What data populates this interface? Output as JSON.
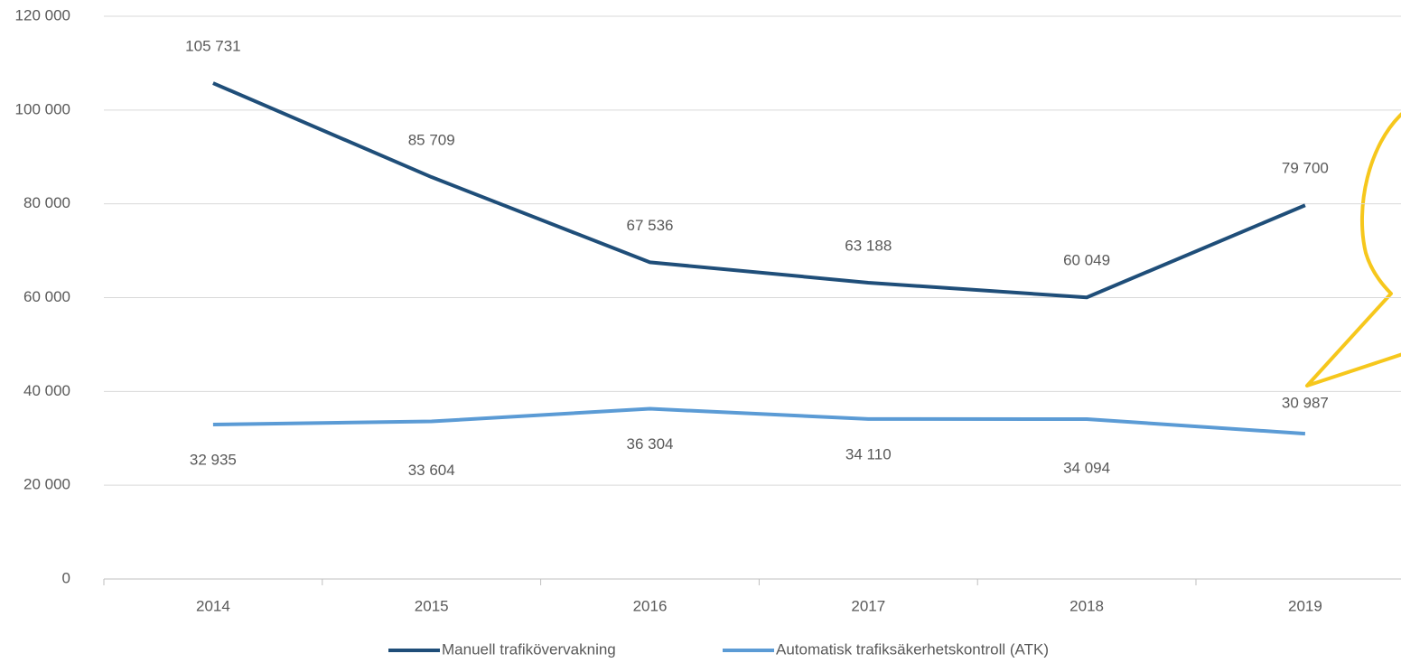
{
  "chart_data": {
    "type": "line",
    "categories": [
      "2014",
      "2015",
      "2016",
      "2017",
      "2018",
      "2019"
    ],
    "series": [
      {
        "name": "Manuell trafikövervakning",
        "color": "#1f4e79",
        "values": [
          105731,
          85709,
          67536,
          63188,
          60049,
          79700
        ],
        "value_labels": [
          "105 731",
          "85 709",
          "67 536",
          "63 188",
          "60 049",
          "79 700"
        ]
      },
      {
        "name": "Automatisk trafiksäkerhetskontroll (ATK)",
        "color": "#5b9bd5",
        "values": [
          32935,
          33604,
          36304,
          34110,
          34094,
          30987
        ],
        "value_labels": [
          "32 935",
          "33 604",
          "36 304",
          "34 110",
          "34 094",
          "30 987"
        ]
      }
    ],
    "ylim": [
      0,
      120000
    ],
    "yticks": [
      {
        "value": 0,
        "label": "0"
      },
      {
        "value": 20000,
        "label": "20 000"
      },
      {
        "value": 40000,
        "label": "40 000"
      },
      {
        "value": 60000,
        "label": "60 000"
      },
      {
        "value": 80000,
        "label": "80 000"
      },
      {
        "value": 100000,
        "label": "100 000"
      },
      {
        "value": 120000,
        "label": "120 000"
      }
    ],
    "grid": true,
    "legend": "bottom"
  }
}
